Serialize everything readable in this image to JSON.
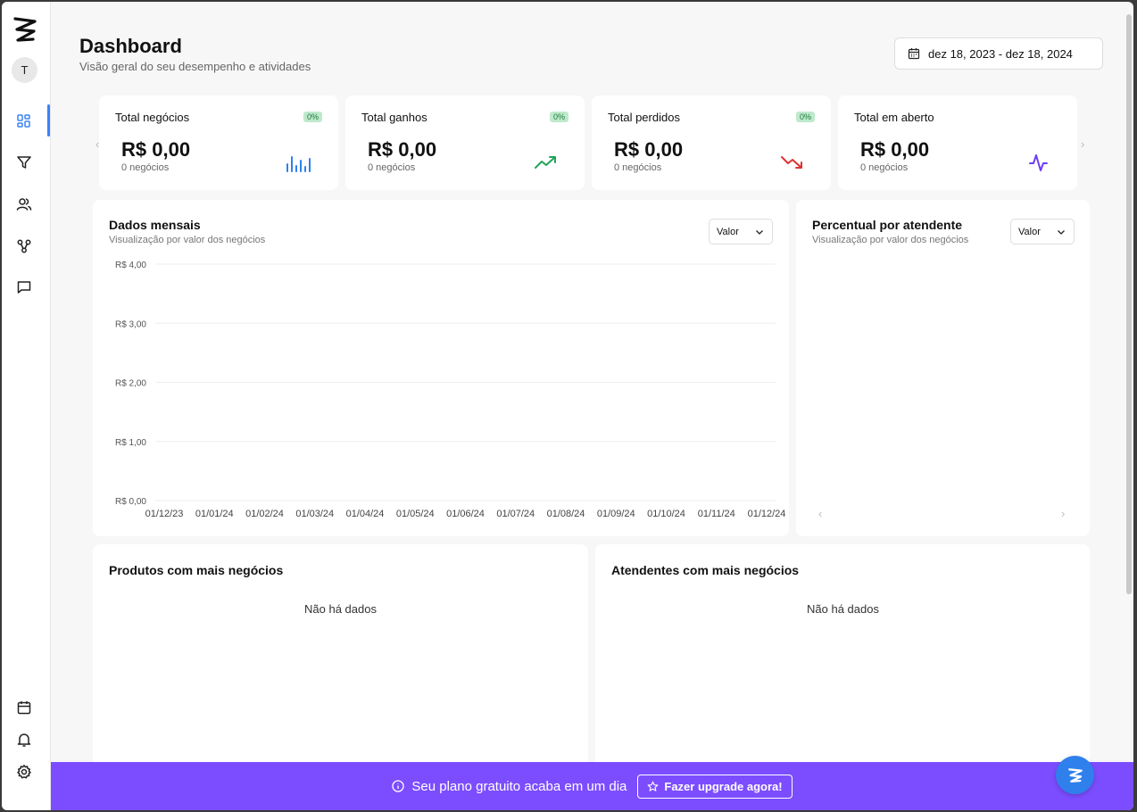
{
  "sidebar": {
    "avatar_initial": "T",
    "items": [
      "dashboard-icon",
      "funnel-icon",
      "users-icon",
      "integrations-icon",
      "chat-icon"
    ],
    "bottom_items": [
      "calendar-icon",
      "bell-icon",
      "gear-icon"
    ],
    "accent": "#3b82f6"
  },
  "header": {
    "title": "Dashboard",
    "subtitle": "Visão geral do seu desempenho e atividades",
    "date_range": "dez 18, 2023 - dez 18, 2024"
  },
  "stats": [
    {
      "title": "Total negócios",
      "badge": "0%",
      "value": "R$ 0,00",
      "count": "0 negócios",
      "icon": "bar-chart-icon",
      "color": "#2f80ed"
    },
    {
      "title": "Total ganhos",
      "badge": "0%",
      "value": "R$ 0,00",
      "count": "0 negócios",
      "icon": "trending-up-icon",
      "color": "#22a35a"
    },
    {
      "title": "Total perdidos",
      "badge": "0%",
      "value": "R$ 0,00",
      "count": "0 negócios",
      "icon": "trending-down-icon",
      "color": "#e03131"
    },
    {
      "title": "Total em aberto",
      "value": "R$ 0,00",
      "count": "0 negócios",
      "icon": "activity-icon",
      "color": "#6d3df5"
    }
  ],
  "monthly": {
    "title": "Dados mensais",
    "subtitle": "Visualização por valor dos negócios",
    "dropdown": "Valor"
  },
  "percent": {
    "title": "Percentual por atendente",
    "subtitle": "Visualização por valor dos negócios",
    "dropdown": "Valor"
  },
  "products": {
    "title": "Produtos com mais negócios",
    "empty": "Não há dados"
  },
  "agents": {
    "title": "Atendentes com mais negócios",
    "empty": "Não há dados"
  },
  "banner": {
    "text": "Seu plano gratuito acaba em um dia",
    "button": "Fazer upgrade agora!",
    "color": "#7c4dff"
  },
  "chart_data": {
    "type": "bar",
    "categories": [
      "01/12/23",
      "01/01/24",
      "01/02/24",
      "01/03/24",
      "01/04/24",
      "01/05/24",
      "01/06/24",
      "01/07/24",
      "01/08/24",
      "01/09/24",
      "01/10/24",
      "01/11/24",
      "01/12/24"
    ],
    "values": [
      0,
      0,
      0,
      0,
      0,
      0,
      0,
      0,
      0,
      0,
      0,
      0,
      0
    ],
    "yticks": [
      "R$ 0,00",
      "R$ 1,00",
      "R$ 2,00",
      "R$ 3,00",
      "R$ 4,00"
    ],
    "ylim": [
      0,
      4
    ],
    "grid": true,
    "title": "Dados mensais"
  }
}
